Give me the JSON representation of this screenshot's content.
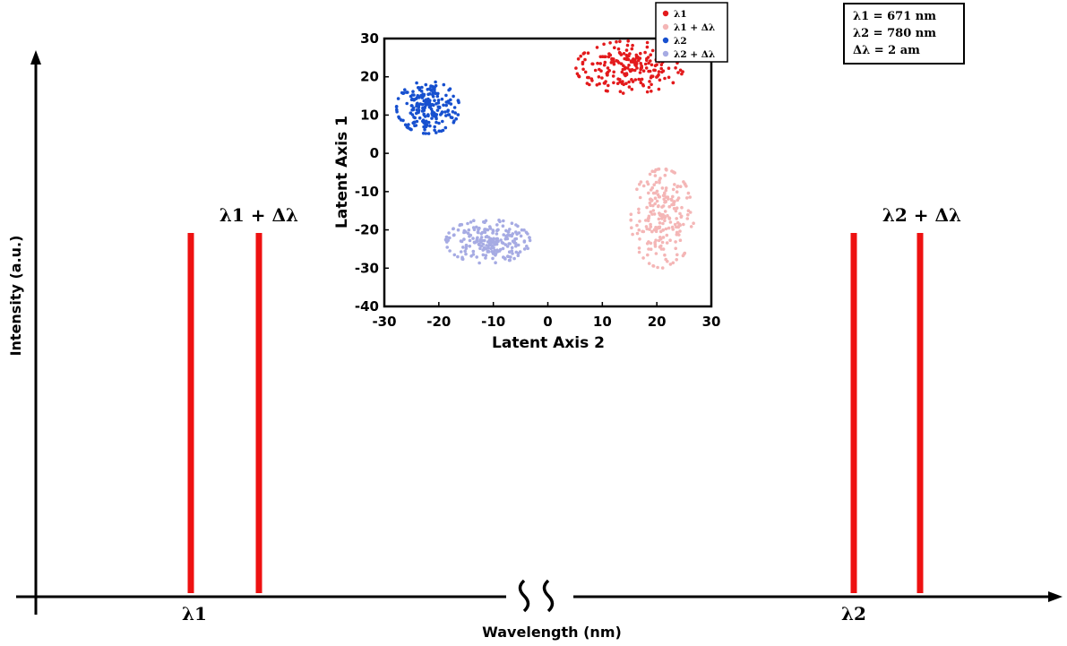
{
  "chart_data": [
    {
      "type": "bar",
      "xlabel": "Wavelength (nm)",
      "ylabel": "Intensity (a.u.)",
      "categories": [
        "λ1",
        "λ1 + Δλ",
        "λ2",
        "λ2 + Δλ"
      ],
      "values": [
        1,
        1,
        1,
        1
      ],
      "colors": {
        "line": "#ee1111",
        "axis": "#000000"
      },
      "axis_break": true
    },
    {
      "type": "scatter",
      "xlabel": "Latent Axis 2",
      "ylabel": "Latent Axis 1",
      "xlim": [
        -30,
        30
      ],
      "ylim": [
        -40,
        30
      ],
      "xticks": [
        -30,
        -20,
        -10,
        0,
        10,
        20,
        30
      ],
      "yticks": [
        -40,
        -30,
        -20,
        -10,
        0,
        10,
        20,
        30
      ],
      "legend_position": "top-right",
      "series": [
        {
          "name": "λ1",
          "color": "#e31a1c",
          "cluster": {
            "cx": 15,
            "cy": 22.5,
            "sx": 5.5,
            "sy": 3.8,
            "n": 220
          }
        },
        {
          "name": "λ1 + Δλ",
          "color": "#f4b6b6",
          "cluster": {
            "cx": 21,
            "cy": -17,
            "sx": 3.2,
            "sy": 7.2,
            "n": 220
          }
        },
        {
          "name": "λ2",
          "color": "#1750cf",
          "cluster": {
            "cx": -22,
            "cy": 12,
            "sx": 3.2,
            "sy": 3.8,
            "n": 220
          }
        },
        {
          "name": "λ2 + Δλ",
          "color": "#a6abe3",
          "cluster": {
            "cx": -11,
            "cy": -23,
            "sx": 4.3,
            "sy": 3.2,
            "n": 220
          }
        }
      ]
    }
  ],
  "info": {
    "line1": "λ1 = 671 nm",
    "line2": "λ2 = 780 nm",
    "line3": "Δλ = 2 am"
  }
}
